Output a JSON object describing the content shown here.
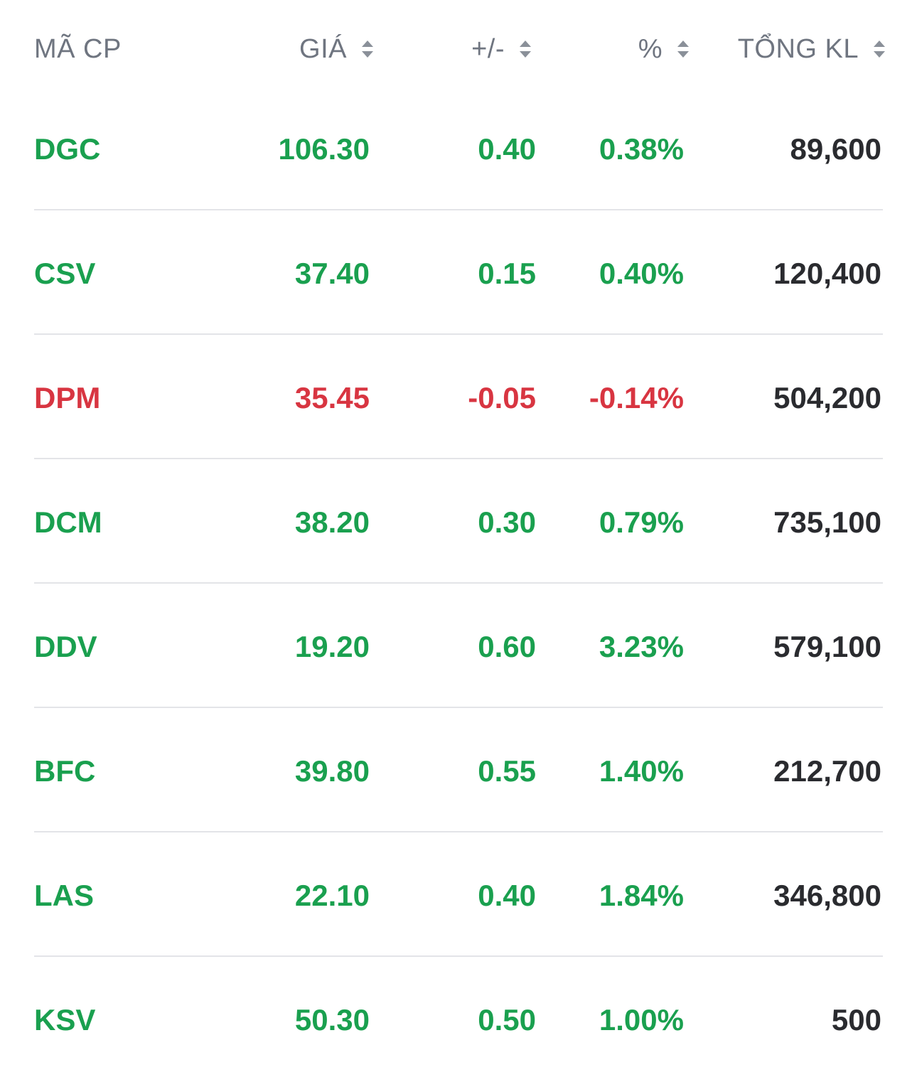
{
  "colors": {
    "up": "#1aa04f",
    "down": "#d83541",
    "header_text": "#6f7580",
    "volume_text": "#2a2b2f",
    "divider": "#e3e4e8"
  },
  "header": {
    "symbol": "MÃ CP",
    "price": "GIÁ",
    "change": "+/-",
    "percent": "%",
    "volume": "TỔNG KL",
    "sort_icon": "sort-updown-icon"
  },
  "rows": [
    {
      "symbol": "DGC",
      "price": "106.30",
      "change": "0.40",
      "percent": "0.38%",
      "volume": "89,600",
      "trend": "up"
    },
    {
      "symbol": "CSV",
      "price": "37.40",
      "change": "0.15",
      "percent": "0.40%",
      "volume": "120,400",
      "trend": "up"
    },
    {
      "symbol": "DPM",
      "price": "35.45",
      "change": "-0.05",
      "percent": "-0.14%",
      "volume": "504,200",
      "trend": "down"
    },
    {
      "symbol": "DCM",
      "price": "38.20",
      "change": "0.30",
      "percent": "0.79%",
      "volume": "735,100",
      "trend": "up"
    },
    {
      "symbol": "DDV",
      "price": "19.20",
      "change": "0.60",
      "percent": "3.23%",
      "volume": "579,100",
      "trend": "up"
    },
    {
      "symbol": "BFC",
      "price": "39.80",
      "change": "0.55",
      "percent": "1.40%",
      "volume": "212,700",
      "trend": "up"
    },
    {
      "symbol": "LAS",
      "price": "22.10",
      "change": "0.40",
      "percent": "1.84%",
      "volume": "346,800",
      "trend": "up"
    },
    {
      "symbol": "KSV",
      "price": "50.30",
      "change": "0.50",
      "percent": "1.00%",
      "volume": "500",
      "trend": "up"
    }
  ]
}
